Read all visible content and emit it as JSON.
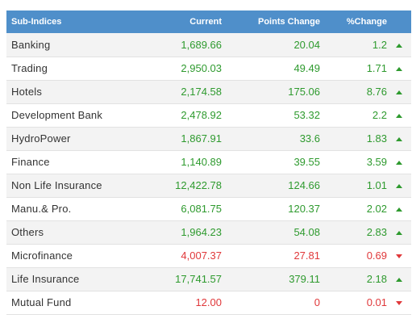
{
  "table": {
    "headers": {
      "name": "Sub-Indices",
      "current": "Current",
      "points_change": "Points Change",
      "pct_change": "%Change"
    },
    "rows": [
      {
        "name": "Banking",
        "current": "1,689.66",
        "points": "20.04",
        "pct": "1.2",
        "trend": "up"
      },
      {
        "name": "Trading",
        "current": "2,950.03",
        "points": "49.49",
        "pct": "1.71",
        "trend": "up"
      },
      {
        "name": "Hotels",
        "current": "2,174.58",
        "points": "175.06",
        "pct": "8.76",
        "trend": "up"
      },
      {
        "name": "Development Bank",
        "current": "2,478.92",
        "points": "53.32",
        "pct": "2.2",
        "trend": "up"
      },
      {
        "name": "HydroPower",
        "current": "1,867.91",
        "points": "33.6",
        "pct": "1.83",
        "trend": "up"
      },
      {
        "name": "Finance",
        "current": "1,140.89",
        "points": "39.55",
        "pct": "3.59",
        "trend": "up"
      },
      {
        "name": "Non Life Insurance",
        "current": "12,422.78",
        "points": "124.66",
        "pct": "1.01",
        "trend": "up"
      },
      {
        "name": "Manu.& Pro.",
        "current": "6,081.75",
        "points": "120.37",
        "pct": "2.02",
        "trend": "up"
      },
      {
        "name": "Others",
        "current": "1,964.23",
        "points": "54.08",
        "pct": "2.83",
        "trend": "up"
      },
      {
        "name": "Microfinance",
        "current": "4,007.37",
        "points": "27.81",
        "pct": "0.69",
        "trend": "down"
      },
      {
        "name": "Life Insurance",
        "current": "17,741.57",
        "points": "379.11",
        "pct": "2.18",
        "trend": "up"
      },
      {
        "name": "Mutual Fund",
        "current": "12.00",
        "points": "0",
        "pct": "0.01",
        "trend": "down"
      }
    ]
  },
  "colors": {
    "header_bg": "#4f8fca",
    "up": "#2e9a2e",
    "down": "#e0383a"
  },
  "icons": {
    "up": "triangle-up-icon",
    "down": "triangle-down-icon"
  }
}
